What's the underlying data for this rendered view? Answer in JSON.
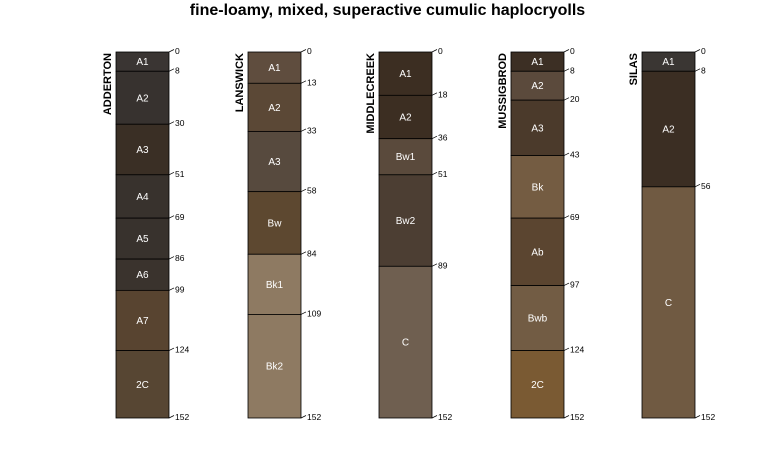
{
  "title": "fine-loamy, mixed, superactive cumulic haplocryolls",
  "max_depth": 152,
  "profiles": [
    {
      "name": "ADDERTON",
      "horizons": [
        {
          "name": "A1",
          "top": 0,
          "bottom": 8,
          "color": "#3a3533"
        },
        {
          "name": "A2",
          "top": 8,
          "bottom": 30,
          "color": "#37322f"
        },
        {
          "name": "A3",
          "top": 30,
          "bottom": 51,
          "color": "#3a2f25"
        },
        {
          "name": "A4",
          "top": 51,
          "bottom": 69,
          "color": "#38322d"
        },
        {
          "name": "A5",
          "top": 69,
          "bottom": 86,
          "color": "#38322d"
        },
        {
          "name": "A6",
          "top": 86,
          "bottom": 99,
          "color": "#3a332d"
        },
        {
          "name": "A7",
          "top": 99,
          "bottom": 124,
          "color": "#584430"
        },
        {
          "name": "2C",
          "top": 124,
          "bottom": 152,
          "color": "#574633"
        }
      ]
    },
    {
      "name": "LANSWICK",
      "horizons": [
        {
          "name": "A1",
          "top": 0,
          "bottom": 13,
          "color": "#5f4d3e"
        },
        {
          "name": "A2",
          "top": 13,
          "bottom": 33,
          "color": "#5b4836"
        },
        {
          "name": "A3",
          "top": 33,
          "bottom": 58,
          "color": "#574a3e"
        },
        {
          "name": "Bw",
          "top": 58,
          "bottom": 84,
          "color": "#5d4830"
        },
        {
          "name": "Bk1",
          "top": 84,
          "bottom": 109,
          "color": "#8e7a62"
        },
        {
          "name": "Bk2",
          "top": 109,
          "bottom": 152,
          "color": "#8e7a62"
        }
      ]
    },
    {
      "name": "MIDDLECREEK",
      "horizons": [
        {
          "name": "A1",
          "top": 0,
          "bottom": 18,
          "color": "#3c2e22"
        },
        {
          "name": "A2",
          "top": 18,
          "bottom": 36,
          "color": "#3c2e22"
        },
        {
          "name": "Bw1",
          "top": 36,
          "bottom": 51,
          "color": "#5a4a3c"
        },
        {
          "name": "Bw2",
          "top": 51,
          "bottom": 89,
          "color": "#4c3e33"
        },
        {
          "name": "C",
          "top": 89,
          "bottom": 152,
          "color": "#6f5f50"
        }
      ]
    },
    {
      "name": "MUSSIGBROD",
      "horizons": [
        {
          "name": "A1",
          "top": 0,
          "bottom": 8,
          "color": "#3c2f24"
        },
        {
          "name": "A2",
          "top": 8,
          "bottom": 20,
          "color": "#5b4a3c"
        },
        {
          "name": "A3",
          "top": 20,
          "bottom": 43,
          "color": "#4b3a2b"
        },
        {
          "name": "Bk",
          "top": 43,
          "bottom": 69,
          "color": "#745c42"
        },
        {
          "name": "Ab",
          "top": 69,
          "bottom": 97,
          "color": "#5b4530"
        },
        {
          "name": "Bwb",
          "top": 97,
          "bottom": 124,
          "color": "#725c44"
        },
        {
          "name": "2C",
          "top": 124,
          "bottom": 152,
          "color": "#7a5a33"
        }
      ]
    },
    {
      "name": "SILAS",
      "horizons": [
        {
          "name": "A1",
          "top": 0,
          "bottom": 8,
          "color": "#3a3633"
        },
        {
          "name": "A2",
          "top": 8,
          "bottom": 56,
          "color": "#3b2e23"
        },
        {
          "name": "C",
          "top": 56,
          "bottom": 152,
          "color": "#705a42"
        }
      ]
    }
  ]
}
